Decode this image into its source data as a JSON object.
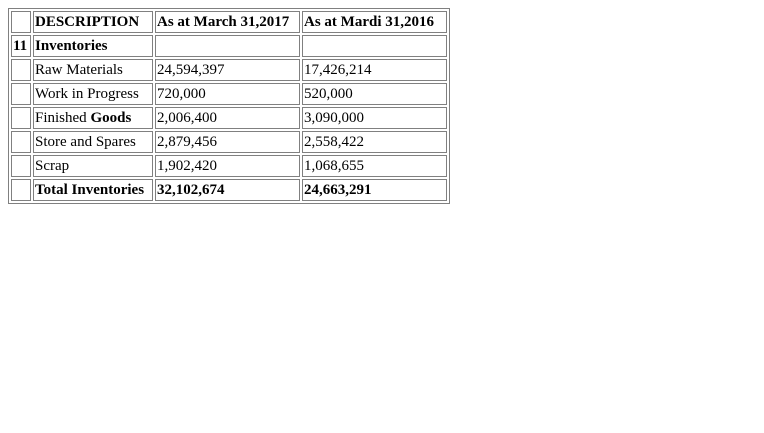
{
  "header": {
    "num": "",
    "description": "DESCRIPTION",
    "col_2017": "As at March 31,2017",
    "col_2016": "As at Mardi 31,2016"
  },
  "section": {
    "num": "11",
    "title": "Inventories",
    "v2017": "",
    "v2016": ""
  },
  "rows": [
    {
      "label": "Raw Materials",
      "v2017": "24,594,397",
      "v2016": "17,426,214"
    },
    {
      "label": "Work in Progress",
      "v2017": "720,000",
      "v2016": "520,000"
    },
    {
      "label_pre": "Finished ",
      "label_bold": "Goods",
      "v2017": "2,006,400",
      "v2016": "3,090,000"
    },
    {
      "label": "Store and Spares",
      "v2017": "2,879,456",
      "v2016": "2,558,422"
    },
    {
      "label": "Scrap",
      "v2017": "1,902,420",
      "v2016": "1,068,655"
    }
  ],
  "total": {
    "label": "Total Inventories",
    "v2017": "32,102,674",
    "v2016": "24,663,291"
  }
}
